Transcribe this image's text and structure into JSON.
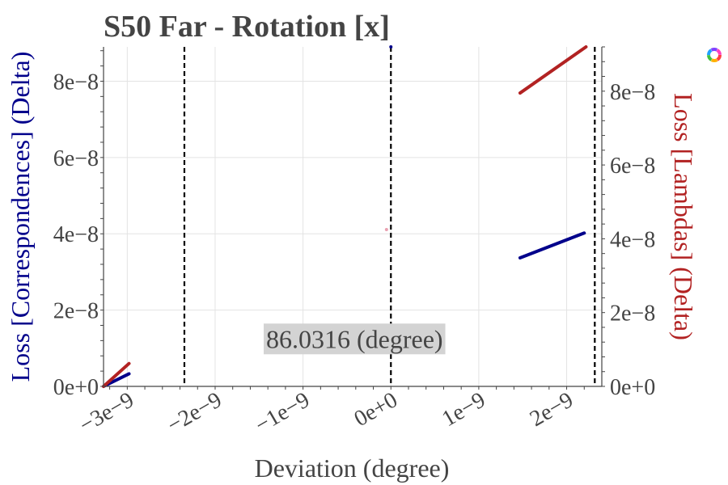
{
  "chart_data": {
    "type": "scatter",
    "title": "S50 Far - Rotation [x]",
    "xlabel": "Deviation (degree)",
    "ylabel_left": "Loss [Correspondences] (Delta)",
    "ylabel_right": "Loss [Lambdas] (Delta)",
    "x_range": [
      -3.27e-09,
      2.4e-09
    ],
    "y_left_range": [
      0,
      8.9e-08
    ],
    "y_right_range": [
      0,
      9.2e-08
    ],
    "x_ticks": [
      {
        "value": -3e-09,
        "label": "−3e−9"
      },
      {
        "value": -2e-09,
        "label": "−2e−9"
      },
      {
        "value": -1e-09,
        "label": "−1e−9"
      },
      {
        "value": 0,
        "label": "0e+0"
      },
      {
        "value": 1e-09,
        "label": "1e−9"
      },
      {
        "value": 2e-09,
        "label": "2e−9"
      }
    ],
    "y_left_ticks": [
      {
        "value": 0,
        "label": "0e+0"
      },
      {
        "value": 2e-08,
        "label": "2e−8"
      },
      {
        "value": 4e-08,
        "label": "4e−8"
      },
      {
        "value": 6e-08,
        "label": "6e−8"
      },
      {
        "value": 8e-08,
        "label": "8e−8"
      }
    ],
    "y_right_ticks": [
      {
        "value": 0,
        "label": "0e+0"
      },
      {
        "value": 2e-08,
        "label": "2e−8"
      },
      {
        "value": 4e-08,
        "label": "4e−8"
      },
      {
        "value": 6e-08,
        "label": "6e−8"
      },
      {
        "value": 8e-08,
        "label": "8e−8"
      }
    ],
    "vertical_lines": [
      -2.35e-09,
      0,
      2.32e-09
    ],
    "grid": true,
    "annotation": {
      "text": "86.0316 (degree)",
      "x_anchor": 0,
      "y_value": 1.35e-08
    },
    "series": [
      {
        "axis": "left",
        "color": "#00008b",
        "segments": [
          {
            "x": [
              -3.35e-09,
              -2.98e-09
            ],
            "y": [
              0,
              3.3e-09
            ]
          },
          {
            "x": [
              1.47e-09,
              2.2e-09
            ],
            "y": [
              3.37e-08,
              4.02e-08
            ]
          }
        ],
        "points": [
          {
            "x": 0,
            "y": 8.9e-08
          }
        ]
      },
      {
        "axis": "right",
        "color": "#b22222",
        "segments": [
          {
            "x": [
              -3.35e-09,
              -2.98e-09
            ],
            "y": [
              0,
              6.2e-09
            ]
          },
          {
            "x": [
              1.47e-09,
              2.22e-09
            ],
            "y": [
              7.95e-08,
              9.2e-08
            ]
          }
        ],
        "points": [
          {
            "x": -5e-11,
            "y": 4.25e-08,
            "color": "#e8a0b0"
          }
        ]
      }
    ]
  },
  "logo": {
    "name": "colorful-wheel-icon"
  }
}
